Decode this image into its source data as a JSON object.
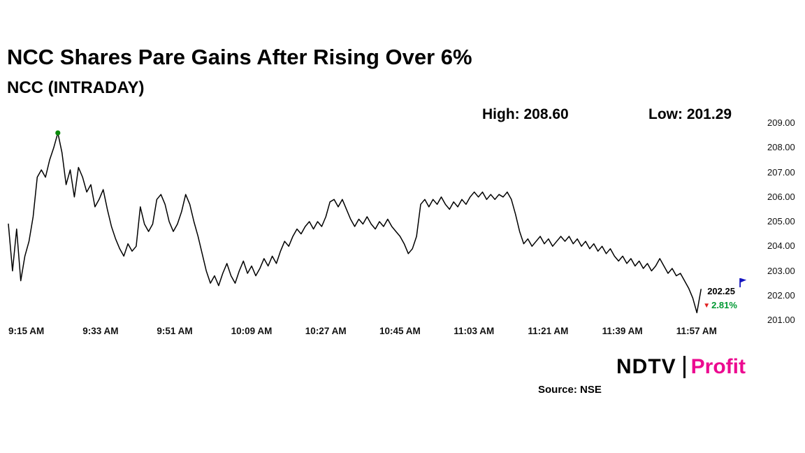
{
  "page": {
    "title": "NCC Shares Pare Gains After Rising Over 6%",
    "subtitle": "NCC (INTRADAY)",
    "high_label": "High: 208.60",
    "low_label": "Low: 201.29",
    "source": "Source: NSE",
    "logo": {
      "ndtv": "NDTV",
      "separator": "|",
      "profit": "Profit",
      "profit_color": "#ec0a90"
    }
  },
  "chart_data": {
    "type": "line",
    "title": "NCC (INTRADAY)",
    "xlabel": "",
    "ylabel": "",
    "ylim": [
      201,
      209
    ],
    "grid": false,
    "legend": false,
    "high": 208.6,
    "low": 201.29,
    "last_price": 202.25,
    "last_price_label": "202.25",
    "change_label": "2.81%",
    "change_arrow": "▼",
    "change_color": "#009933",
    "arrow_color": "#e02020",
    "line_color": "#000000",
    "peak_marker_color": "#0b8a0b",
    "end_marker_color": "#1515c0",
    "start_time": "9:15 AM",
    "interval_minutes": 1,
    "x_tick_interval_minutes": 18,
    "x_tick_labels": [
      "9:15 AM",
      "9:33 AM",
      "9:51 AM",
      "10:09 AM",
      "10:27 AM",
      "10:45 AM",
      "11:03 AM",
      "11:21 AM",
      "11:39 AM",
      "11:57 AM"
    ],
    "y_tick_labels": [
      "209.00",
      "208.00",
      "207.00",
      "206.00",
      "205.00",
      "204.00",
      "203.00",
      "202.00",
      "201.00"
    ],
    "series": [
      {
        "name": "NCC",
        "values": [
          204.9,
          203.0,
          204.7,
          202.6,
          203.6,
          204.2,
          205.2,
          206.8,
          207.1,
          206.8,
          207.5,
          208.0,
          208.6,
          207.8,
          206.5,
          207.1,
          206.0,
          207.2,
          206.8,
          206.2,
          206.5,
          205.6,
          205.9,
          206.3,
          205.5,
          204.8,
          204.3,
          203.9,
          203.6,
          204.1,
          203.8,
          204.0,
          205.6,
          204.9,
          204.6,
          204.9,
          205.9,
          206.1,
          205.7,
          205.0,
          204.6,
          204.9,
          205.4,
          206.1,
          205.7,
          205.0,
          204.4,
          203.7,
          203.0,
          202.5,
          202.8,
          202.4,
          202.9,
          203.3,
          202.8,
          202.5,
          203.0,
          203.4,
          202.9,
          203.2,
          202.8,
          203.1,
          203.5,
          203.2,
          203.6,
          203.3,
          203.8,
          204.2,
          204.0,
          204.4,
          204.7,
          204.5,
          204.8,
          205.0,
          204.7,
          205.0,
          204.8,
          205.2,
          205.8,
          205.9,
          205.6,
          205.9,
          205.5,
          205.1,
          204.8,
          205.1,
          204.9,
          205.2,
          204.9,
          204.7,
          205.0,
          204.8,
          205.1,
          204.8,
          204.6,
          204.4,
          204.1,
          203.7,
          203.9,
          204.4,
          205.7,
          205.9,
          205.6,
          205.9,
          205.7,
          206.0,
          205.7,
          205.5,
          205.8,
          205.6,
          205.9,
          205.7,
          206.0,
          206.2,
          206.0,
          206.2,
          205.9,
          206.1,
          205.9,
          206.1,
          206.0,
          206.2,
          205.9,
          205.3,
          204.6,
          204.1,
          204.3,
          204.0,
          204.2,
          204.4,
          204.1,
          204.3,
          204.0,
          204.2,
          204.4,
          204.2,
          204.4,
          204.1,
          204.3,
          204.0,
          204.2,
          203.9,
          204.1,
          203.8,
          204.0,
          203.7,
          203.9,
          203.6,
          203.4,
          203.6,
          203.3,
          203.5,
          203.2,
          203.4,
          203.1,
          203.3,
          203.0,
          203.2,
          203.5,
          203.2,
          202.9,
          203.1,
          202.8,
          202.9,
          202.6,
          202.3,
          201.9,
          201.3,
          202.25
        ]
      }
    ]
  }
}
